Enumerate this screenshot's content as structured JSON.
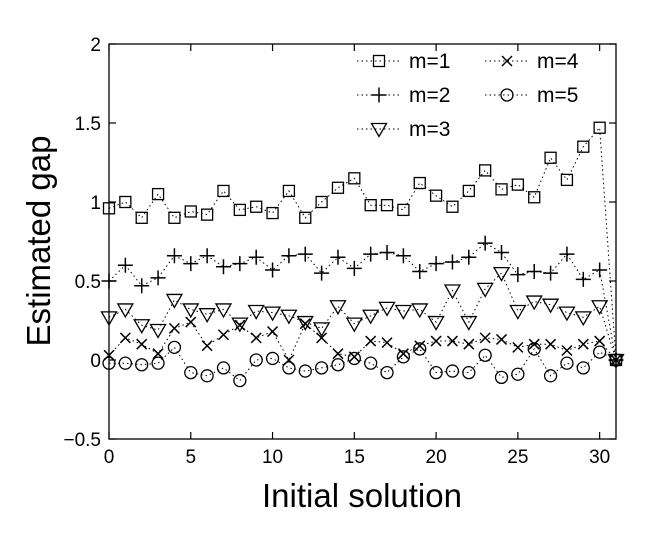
{
  "chart_data": {
    "type": "scatter",
    "xlabel": "Initial solution",
    "ylabel": "Estimated gap",
    "xlim": [
      0,
      31
    ],
    "ylim": [
      -0.5,
      2
    ],
    "xticks": [
      0,
      5,
      10,
      15,
      20,
      25,
      30
    ],
    "xtick_labels": [
      "0",
      "5",
      "10",
      "15",
      "20",
      "25",
      "30"
    ],
    "yticks": [
      -0.5,
      0,
      0.5,
      1,
      1.5,
      2
    ],
    "ytick_labels": [
      "−0.5",
      "0",
      "0.5",
      "1",
      "1.5",
      "2"
    ],
    "grid": false,
    "legend_position": "top-right",
    "line_style": "dotted",
    "x": [
      0,
      1,
      2,
      3,
      4,
      5,
      6,
      7,
      8,
      9,
      10,
      11,
      12,
      13,
      14,
      15,
      16,
      17,
      18,
      19,
      20,
      21,
      22,
      23,
      24,
      25,
      26,
      27,
      28,
      29,
      30,
      31
    ],
    "series": [
      {
        "name": "m=1",
        "marker": "square",
        "values": [
          0.96,
          1.0,
          0.9,
          1.05,
          0.9,
          0.94,
          0.92,
          1.07,
          0.95,
          0.97,
          0.93,
          1.07,
          0.9,
          1.0,
          1.09,
          1.15,
          0.98,
          0.98,
          0.95,
          1.12,
          1.04,
          0.97,
          1.07,
          1.2,
          1.08,
          1.11,
          1.03,
          1.28,
          1.14,
          1.35,
          1.47,
          0.0
        ]
      },
      {
        "name": "m=2",
        "marker": "plus",
        "values": [
          0.5,
          0.6,
          0.47,
          0.52,
          0.66,
          0.61,
          0.66,
          0.59,
          0.61,
          0.65,
          0.57,
          0.66,
          0.67,
          0.55,
          0.65,
          0.58,
          0.67,
          0.68,
          0.66,
          0.56,
          0.61,
          0.62,
          0.65,
          0.74,
          0.68,
          0.54,
          0.56,
          0.55,
          0.67,
          0.51,
          0.57,
          0.0
        ]
      },
      {
        "name": "m=3",
        "marker": "triangle-down",
        "values": [
          0.27,
          0.32,
          0.22,
          0.19,
          0.38,
          0.32,
          0.29,
          0.32,
          0.23,
          0.31,
          0.3,
          0.28,
          0.24,
          0.2,
          0.34,
          0.23,
          0.28,
          0.33,
          0.31,
          0.32,
          0.24,
          0.44,
          0.24,
          0.45,
          0.55,
          0.31,
          0.37,
          0.35,
          0.3,
          0.27,
          0.34,
          0.0
        ]
      },
      {
        "name": "m=4",
        "marker": "x",
        "values": [
          0.03,
          0.14,
          0.1,
          0.04,
          0.2,
          0.24,
          0.09,
          0.16,
          0.22,
          0.14,
          0.18,
          0.0,
          0.23,
          0.14,
          0.04,
          0.02,
          0.12,
          0.11,
          0.04,
          0.09,
          0.12,
          0.12,
          0.1,
          0.14,
          0.13,
          0.08,
          0.1,
          0.1,
          0.06,
          0.1,
          0.12,
          0.0
        ]
      },
      {
        "name": "m=5",
        "marker": "circle",
        "values": [
          -0.02,
          -0.02,
          -0.03,
          -0.02,
          0.08,
          -0.08,
          -0.1,
          -0.05,
          -0.13,
          0.0,
          0.01,
          -0.05,
          -0.07,
          -0.05,
          -0.03,
          0.01,
          -0.02,
          -0.08,
          0.02,
          0.07,
          -0.08,
          -0.07,
          -0.08,
          0.03,
          -0.11,
          -0.09,
          0.07,
          -0.1,
          -0.02,
          -0.05,
          0.05,
          0.0
        ]
      }
    ]
  },
  "legend": {
    "items": [
      "m=1",
      "m=2",
      "m=3",
      "m=4",
      "m=5"
    ]
  }
}
